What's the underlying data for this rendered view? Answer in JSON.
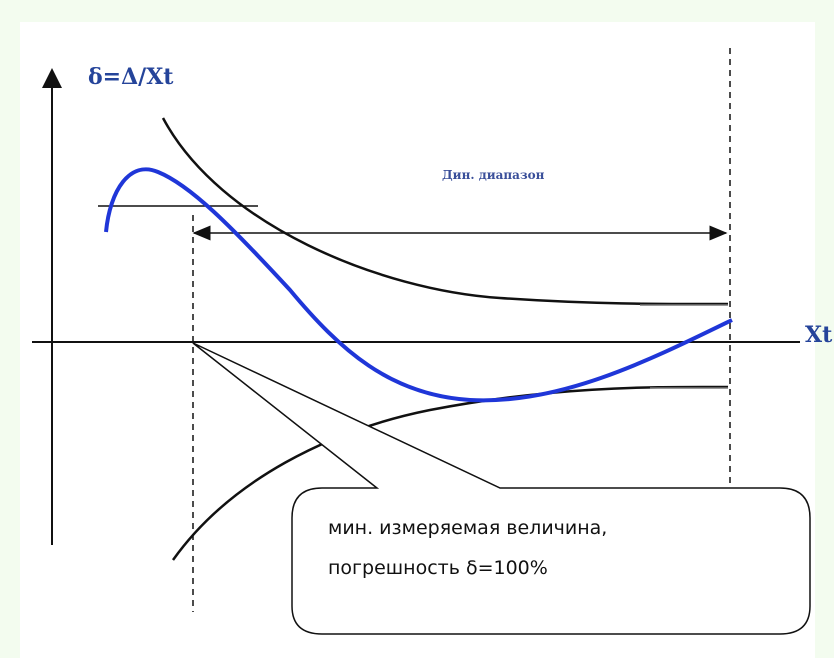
{
  "diagram": {
    "y_axis_label": "δ=Δ/Xt",
    "x_axis_label": "Xt",
    "range_label": "Дин. диапазон",
    "callout": {
      "line1": "мин. измеряемая величина,",
      "line2": "погрешность δ=100%"
    }
  },
  "colors": {
    "background": "#f3fcef",
    "curve_blue": "#1f36d8",
    "curve_black": "#111111",
    "label_blue": "#25449a"
  }
}
